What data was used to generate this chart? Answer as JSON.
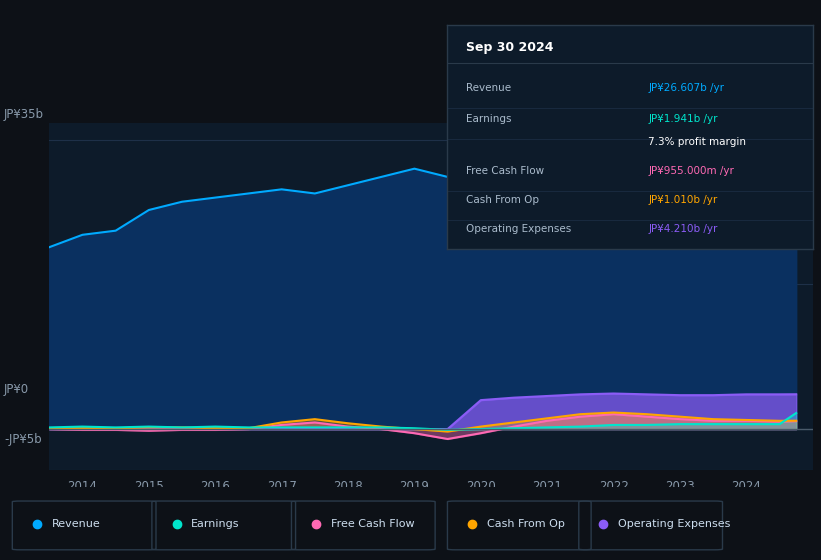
{
  "bg_color": "#0d1117",
  "plot_bg_color": "#0d1b2a",
  "grid_color": "#1e3048",
  "title": "Sep 30 2024",
  "y_label_top": "JP¥35b",
  "y_label_zero": "JP¥0",
  "y_label_neg": "-JP¥5b",
  "ylim": [
    -5,
    37
  ],
  "xlim_start": 2013.5,
  "xlim_end": 2025.0,
  "xticks": [
    2014,
    2015,
    2016,
    2017,
    2018,
    2019,
    2020,
    2021,
    2022,
    2023,
    2024
  ],
  "series": {
    "revenue": {
      "color": "#00aaff",
      "fill": "#0a3060",
      "label": "Revenue"
    },
    "earnings": {
      "color": "#00e5cc",
      "fill": "#00e5cc",
      "label": "Earnings"
    },
    "free_cash_flow": {
      "color": "#ff69b4",
      "fill": "#ff69b4",
      "label": "Free Cash Flow"
    },
    "cash_from_op": {
      "color": "#ffa500",
      "fill": "#ffa500",
      "label": "Cash From Op"
    },
    "operating_expenses": {
      "color": "#8b5cf6",
      "fill": "#8b5cf6",
      "label": "Operating Expenses"
    }
  },
  "revenue_data": {
    "x": [
      2013.5,
      2014.0,
      2014.5,
      2015.0,
      2015.5,
      2016.0,
      2016.5,
      2017.0,
      2017.5,
      2018.0,
      2018.5,
      2019.0,
      2019.5,
      2020.0,
      2020.5,
      2021.0,
      2021.5,
      2022.0,
      2022.5,
      2023.0,
      2023.5,
      2024.0,
      2024.5,
      2024.75
    ],
    "y": [
      22.0,
      23.5,
      24.0,
      26.5,
      27.5,
      28.0,
      28.5,
      29.0,
      28.5,
      29.5,
      30.5,
      31.5,
      30.5,
      29.5,
      26.0,
      23.5,
      26.0,
      29.0,
      30.5,
      30.0,
      29.5,
      28.0,
      27.0,
      26.6
    ]
  },
  "earnings_data": {
    "x": [
      2013.5,
      2014.0,
      2014.5,
      2015.0,
      2015.5,
      2016.0,
      2016.5,
      2017.0,
      2017.5,
      2018.0,
      2018.5,
      2019.0,
      2019.5,
      2020.0,
      2020.5,
      2021.0,
      2021.5,
      2022.0,
      2022.5,
      2023.0,
      2023.5,
      2024.0,
      2024.5,
      2024.75
    ],
    "y": [
      0.2,
      0.3,
      0.2,
      0.3,
      0.2,
      0.3,
      0.2,
      0.2,
      0.2,
      0.2,
      0.2,
      0.1,
      -0.1,
      0.0,
      0.1,
      0.2,
      0.3,
      0.5,
      0.5,
      0.6,
      0.6,
      0.6,
      0.6,
      1.941
    ]
  },
  "free_cash_flow_data": {
    "x": [
      2013.5,
      2014.0,
      2014.5,
      2015.0,
      2015.5,
      2016.0,
      2016.5,
      2017.0,
      2017.5,
      2018.0,
      2018.5,
      2019.0,
      2019.5,
      2020.0,
      2020.5,
      2021.0,
      2021.5,
      2022.0,
      2022.5,
      2023.0,
      2023.5,
      2024.0,
      2024.5,
      2024.75
    ],
    "y": [
      0.0,
      -0.1,
      -0.1,
      -0.2,
      -0.1,
      -0.1,
      0.0,
      0.5,
      0.8,
      0.3,
      0.0,
      -0.5,
      -1.2,
      -0.5,
      0.3,
      1.0,
      1.5,
      1.8,
      1.5,
      1.2,
      1.0,
      1.0,
      0.9,
      0.955
    ]
  },
  "cash_from_op_data": {
    "x": [
      2013.5,
      2014.0,
      2014.5,
      2015.0,
      2015.5,
      2016.0,
      2016.5,
      2017.0,
      2017.5,
      2018.0,
      2018.5,
      2019.0,
      2019.5,
      2020.0,
      2020.5,
      2021.0,
      2021.5,
      2022.0,
      2022.5,
      2023.0,
      2023.5,
      2024.0,
      2024.5,
      2024.75
    ],
    "y": [
      0.1,
      0.1,
      0.1,
      0.2,
      0.2,
      0.1,
      0.1,
      0.8,
      1.2,
      0.7,
      0.3,
      0.0,
      -0.3,
      0.3,
      0.8,
      1.3,
      1.8,
      2.0,
      1.8,
      1.5,
      1.2,
      1.1,
      1.0,
      1.01
    ]
  },
  "operating_expenses_data": {
    "x": [
      2013.5,
      2014.0,
      2014.5,
      2015.0,
      2015.5,
      2016.0,
      2016.5,
      2017.0,
      2017.5,
      2018.0,
      2018.5,
      2019.0,
      2019.5,
      2020.0,
      2020.5,
      2021.0,
      2021.5,
      2022.0,
      2022.5,
      2023.0,
      2023.5,
      2024.0,
      2024.5,
      2024.75
    ],
    "y": [
      0.0,
      0.0,
      0.0,
      0.0,
      0.0,
      0.0,
      0.0,
      0.0,
      0.0,
      0.0,
      0.0,
      0.0,
      0.0,
      3.5,
      3.8,
      4.0,
      4.2,
      4.3,
      4.2,
      4.1,
      4.1,
      4.2,
      4.2,
      4.21
    ]
  },
  "tooltip": {
    "bg": "#0d1b2a",
    "border": "#2a3a4a",
    "title": "Sep 30 2024",
    "rows": [
      {
        "label": "Revenue",
        "value": "JP¥26.607b /yr",
        "color": "#00aaff"
      },
      {
        "label": "Earnings",
        "value": "JP¥1.941b /yr",
        "color": "#00e5cc"
      },
      {
        "label": "",
        "value": "7.3% profit margin",
        "color": "#ffffff"
      },
      {
        "label": "Free Cash Flow",
        "value": "JP¥955.000m /yr",
        "color": "#ff69b4"
      },
      {
        "label": "Cash From Op",
        "value": "JP¥1.010b /yr",
        "color": "#ffa500"
      },
      {
        "label": "Operating Expenses",
        "value": "JP¥4.210b /yr",
        "color": "#8b5cf6"
      }
    ]
  },
  "legend": [
    {
      "label": "Revenue",
      "color": "#00aaff"
    },
    {
      "label": "Earnings",
      "color": "#00e5cc"
    },
    {
      "label": "Free Cash Flow",
      "color": "#ff69b4"
    },
    {
      "label": "Cash From Op",
      "color": "#ffa500"
    },
    {
      "label": "Operating Expenses",
      "color": "#8b5cf6"
    }
  ]
}
